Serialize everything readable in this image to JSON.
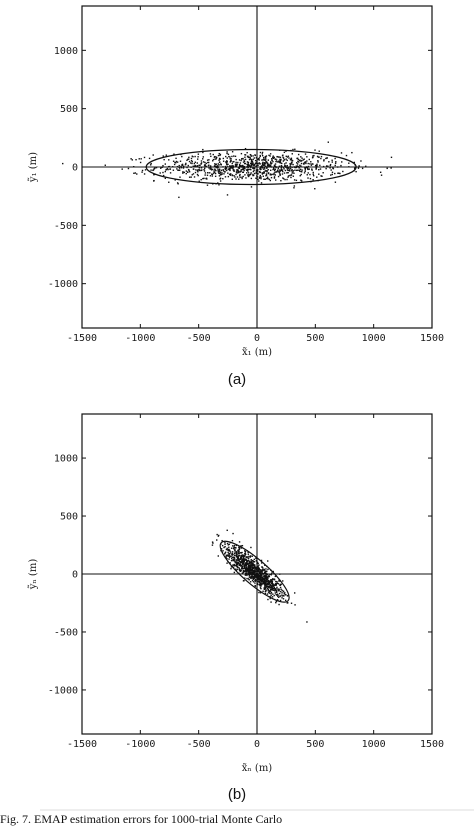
{
  "chart_data": [
    {
      "type": "scatter",
      "panel_label": "(a)",
      "xlabel": "x̃₁ (m)",
      "ylabel": "ỹ₁ (m)",
      "xlim": [
        -1500,
        1500
      ],
      "ylim": [
        -1380,
        1380
      ],
      "xticks": [
        "-1500",
        "-1000",
        "-500",
        "0",
        "500",
        "1000",
        "1500"
      ],
      "yticks": [
        "1000",
        "500",
        "0",
        "-500",
        "-1000"
      ],
      "ytick_values": [
        1000,
        500,
        0,
        -500,
        -1000
      ],
      "points": 1000,
      "cloud": {
        "center": [
          -50,
          0
        ],
        "sd_along": 400,
        "sd_across": 62,
        "angle_deg": 0
      },
      "ellipse": {
        "center": [
          -50,
          0
        ],
        "rx": 900,
        "ry": 150,
        "angle_deg": 0
      },
      "grid": false,
      "crosshair": [
        0,
        0
      ]
    },
    {
      "type": "scatter",
      "panel_label": "(b)",
      "xlabel": "x̃ₙ (m)",
      "ylabel": "ỹₙ (m)",
      "xlim": [
        -1500,
        1500
      ],
      "ylim": [
        -1380,
        1380
      ],
      "xticks": [
        "-1500",
        "-1000",
        "-500",
        "0",
        "500",
        "1000",
        "1500"
      ],
      "yticks": [
        "1000",
        "500",
        "0",
        "-500",
        "-1000"
      ],
      "ytick_values": [
        1000,
        500,
        0,
        -500,
        -1000
      ],
      "points": 1000,
      "cloud": {
        "center": [
          -20,
          20
        ],
        "sd_along": 165,
        "sd_across": 42,
        "angle_deg": -41
      },
      "ellipse": {
        "center": [
          -20,
          20
        ],
        "rx": 380,
        "ry": 105,
        "angle_deg": -41
      },
      "grid": false,
      "crosshair": [
        0,
        0
      ]
    }
  ],
  "caption": "Fig. 7.   EMAP estimation errors for 1000-trial Monte Carlo"
}
